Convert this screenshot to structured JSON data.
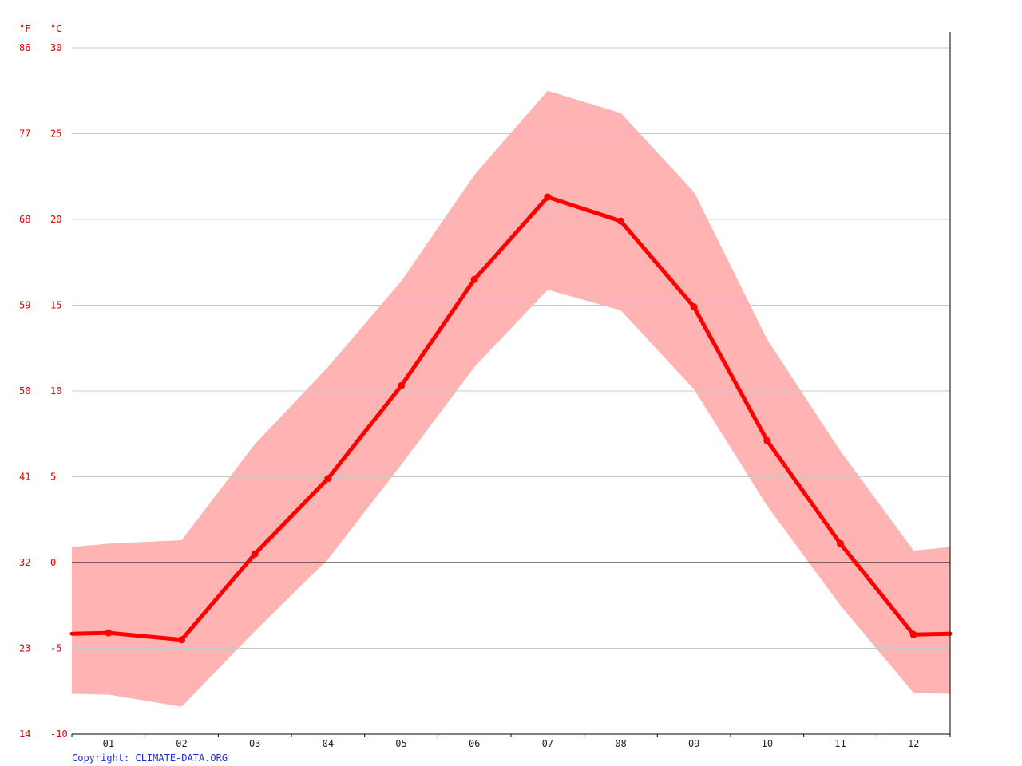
{
  "chart_data": {
    "type": "line",
    "title": "",
    "categories": [
      "01",
      "02",
      "03",
      "04",
      "05",
      "06",
      "07",
      "08",
      "09",
      "10",
      "11",
      "12"
    ],
    "y_unit_left": "°F",
    "y_unit_right": "°C",
    "ylim_celsius": [
      -10,
      30
    ],
    "celsius_ticks": [
      "30",
      "25",
      "20",
      "15",
      "10",
      "5",
      "0",
      "-5",
      "-10"
    ],
    "fahrenheit_ticks": [
      "86",
      "77",
      "68",
      "59",
      "50",
      "41",
      "32",
      "23",
      "14"
    ],
    "grid": true,
    "series": [
      {
        "values": [
          -4.1,
          -4.5,
          0.5,
          4.9,
          10.3,
          16.5,
          21.3,
          19.9,
          14.9,
          7.1,
          1.1,
          -4.2
        ]
      },
      {
        "role": "max",
        "values": [
          1.1,
          1.3,
          6.9,
          11.4,
          16.4,
          22.6,
          27.5,
          26.2,
          21.6,
          13.0,
          6.5,
          0.7
        ]
      },
      {
        "role": "min",
        "values": [
          -7.7,
          -8.4,
          -4.0,
          0.2,
          5.7,
          11.4,
          15.9,
          14.7,
          10.1,
          3.3,
          -2.5,
          -7.6
        ]
      }
    ],
    "colors": {
      "line": "#ff0000",
      "band": "#ffb3b3",
      "axis_text": "#e00000",
      "copyright": "#1d2fd6"
    }
  },
  "copyright": "Copyright: CLIMATE-DATA.ORG"
}
